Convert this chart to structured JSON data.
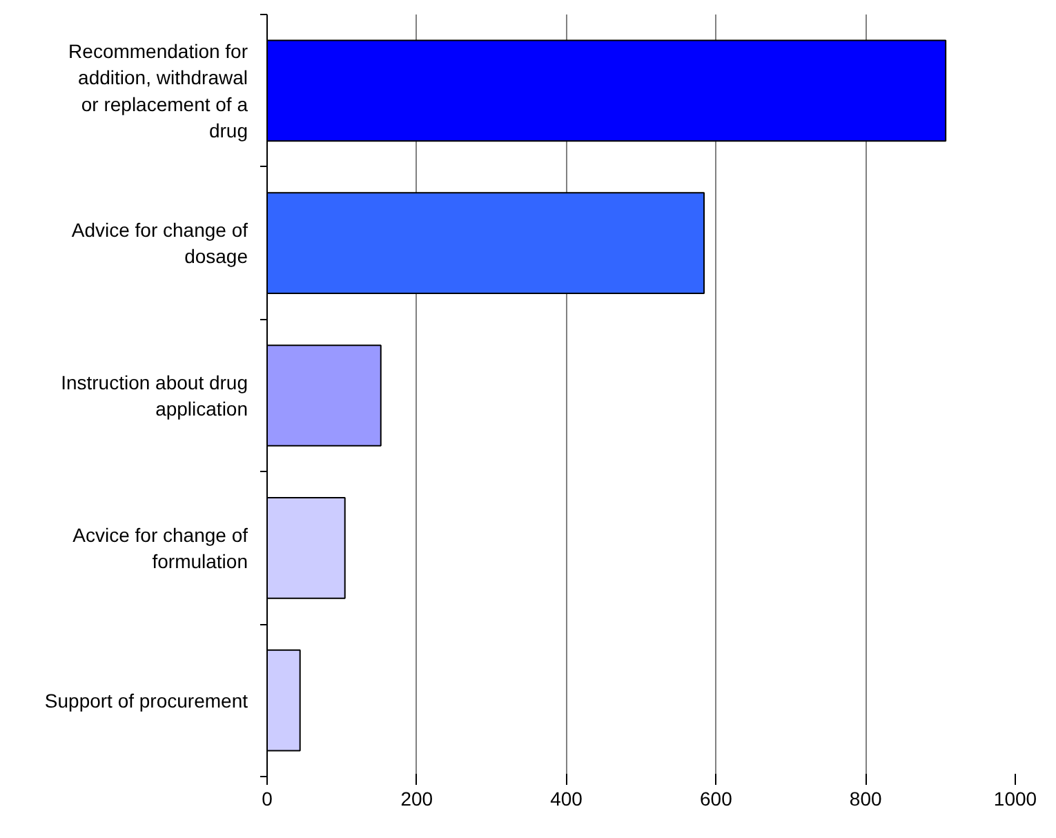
{
  "chart_data": {
    "type": "bar",
    "orientation": "horizontal",
    "categories": [
      "Recommendation for addition, withdrawal or replacement of a drug",
      "Advice for change of dosage",
      "Instruction about drug application",
      "Acvice for change of formulation",
      "Support of procurement"
    ],
    "values": [
      907,
      584,
      152,
      104,
      44
    ],
    "colors": [
      "#0000ff",
      "#3366ff",
      "#9999ff",
      "#ccccff",
      "#ccccff"
    ],
    "xlim": [
      0,
      1000
    ],
    "xticks": [
      0,
      200,
      400,
      600,
      800,
      1000
    ],
    "grid": "x"
  }
}
